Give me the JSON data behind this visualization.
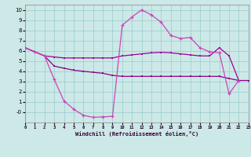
{
  "xlabel": "Windchill (Refroidissement éolien,°C)",
  "xlim": [
    0,
    23
  ],
  "ylim": [
    -1.0,
    10.5
  ],
  "xtick_vals": [
    0,
    1,
    2,
    3,
    4,
    5,
    6,
    7,
    8,
    9,
    10,
    11,
    12,
    13,
    14,
    15,
    16,
    17,
    18,
    19,
    20,
    21,
    22,
    23
  ],
  "ytick_vals": [
    0,
    1,
    2,
    3,
    4,
    5,
    6,
    7,
    8,
    9,
    10
  ],
  "bg_color": "#cce8e7",
  "grid_color": "#99cccc",
  "lc1": "#880088",
  "lc2": "#cc44bb",
  "lc3": "#990099",
  "curve1_x": [
    0,
    1,
    2,
    3,
    4,
    5,
    6,
    7,
    8,
    9,
    10,
    11,
    12,
    13,
    14,
    15,
    16,
    17,
    18,
    19,
    20,
    21,
    22,
    23
  ],
  "curve1_y": [
    6.3,
    5.9,
    5.5,
    4.5,
    4.3,
    4.1,
    4.0,
    3.9,
    3.8,
    3.6,
    3.5,
    3.5,
    3.5,
    3.5,
    3.5,
    3.5,
    3.5,
    3.5,
    3.5,
    3.5,
    3.5,
    3.3,
    3.1,
    3.1
  ],
  "curve2_x": [
    0,
    1,
    2,
    3,
    4,
    5,
    6,
    7,
    8,
    9,
    10,
    11,
    12,
    13,
    14,
    15,
    16,
    17,
    18,
    19,
    20,
    21,
    22
  ],
  "curve2_y": [
    6.3,
    5.9,
    5.5,
    3.2,
    1.1,
    0.3,
    -0.3,
    -0.5,
    -0.45,
    -0.4,
    8.5,
    9.3,
    10.0,
    9.5,
    8.8,
    7.5,
    7.2,
    7.3,
    6.3,
    5.9,
    5.8,
    1.8,
    3.1
  ],
  "curve3_x": [
    0,
    1,
    2,
    3,
    4,
    5,
    6,
    7,
    8,
    9,
    10,
    11,
    12,
    13,
    14,
    15,
    16,
    17,
    18,
    19,
    20,
    21,
    22
  ],
  "curve3_y": [
    6.3,
    5.9,
    5.5,
    5.4,
    5.3,
    5.3,
    5.3,
    5.3,
    5.3,
    5.3,
    5.5,
    5.6,
    5.7,
    5.8,
    5.85,
    5.8,
    5.7,
    5.6,
    5.5,
    5.5,
    6.3,
    5.5,
    3.1
  ]
}
